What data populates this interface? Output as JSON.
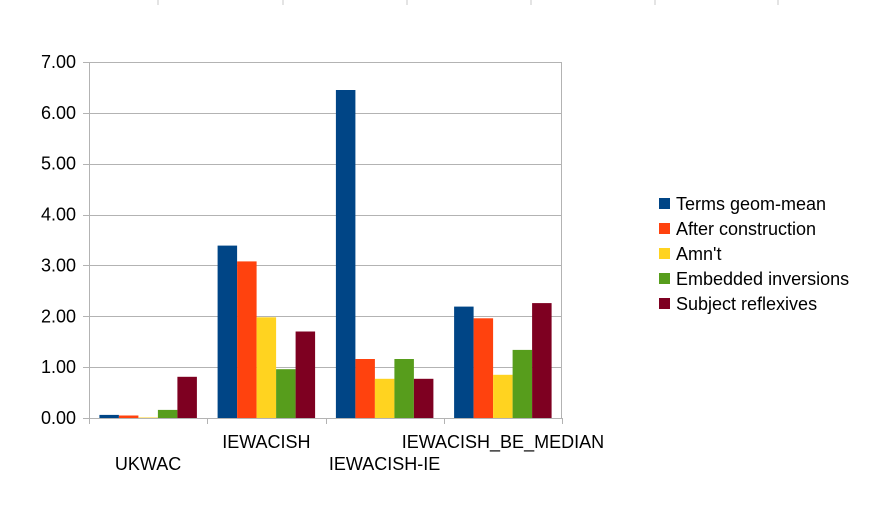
{
  "chart_data": {
    "type": "bar",
    "categories": [
      "UKWAC",
      "IEWACISH",
      "IEWACISH-IE",
      "IEWACISH_BE_MEDIAN"
    ],
    "series": [
      {
        "name": "Terms geom-mean",
        "color": "#004586",
        "values": [
          0.06,
          3.39,
          6.45,
          2.19
        ]
      },
      {
        "name": "After construction",
        "color": "#ff420e",
        "values": [
          0.05,
          3.08,
          1.16,
          1.96
        ]
      },
      {
        "name": "Amn't",
        "color": "#ffd320",
        "values": [
          0.01,
          1.98,
          0.77,
          0.85
        ]
      },
      {
        "name": "Embedded inversions",
        "color": "#579d1c",
        "values": [
          0.16,
          0.96,
          1.16,
          1.34
        ]
      },
      {
        "name": "Subject reflexives",
        "color": "#7e0021",
        "values": [
          0.81,
          1.7,
          0.77,
          2.26
        ]
      }
    ],
    "ylim": [
      0,
      7
    ],
    "yticks": [
      "0.00",
      "1.00",
      "2.00",
      "3.00",
      "4.00",
      "5.00",
      "6.00",
      "7.00"
    ],
    "grid": true,
    "legend": "right"
  }
}
